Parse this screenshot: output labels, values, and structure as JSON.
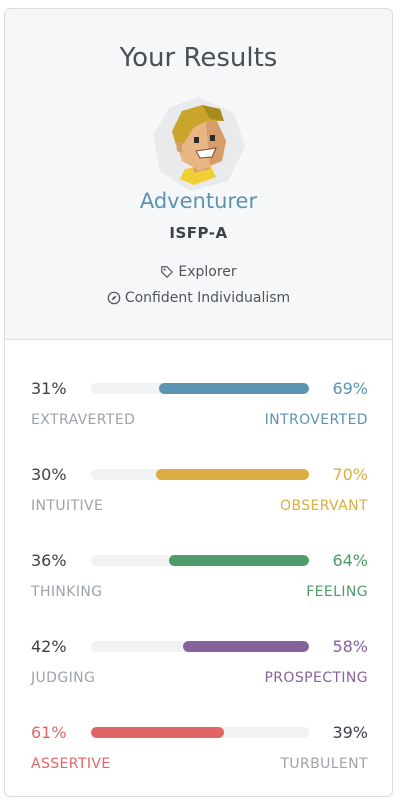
{
  "header": {
    "title": "Your Results",
    "type_name": "Adventurer",
    "type_code": "ISFP-A",
    "role": "Explorer",
    "strategy": "Confident Individualism"
  },
  "traits": [
    {
      "left_pct": "31%",
      "right_pct": "69%",
      "left_label": "EXTRAVERTED",
      "right_label": "INTROVERTED",
      "dominant": "right",
      "dominant_fraction": 0.69,
      "color": "#5b94b0"
    },
    {
      "left_pct": "30%",
      "right_pct": "70%",
      "left_label": "INTUITIVE",
      "right_label": "OBSERVANT",
      "dominant": "right",
      "dominant_fraction": 0.7,
      "color": "#dcae42"
    },
    {
      "left_pct": "36%",
      "right_pct": "64%",
      "left_label": "THINKING",
      "right_label": "FEELING",
      "dominant": "right",
      "dominant_fraction": 0.64,
      "color": "#4f9b6c"
    },
    {
      "left_pct": "42%",
      "right_pct": "58%",
      "left_label": "JUDGING",
      "right_label": "PROSPECTING",
      "dominant": "right",
      "dominant_fraction": 0.58,
      "color": "#86629a"
    },
    {
      "left_pct": "61%",
      "right_pct": "39%",
      "left_label": "ASSERTIVE",
      "right_label": "TURBULENT",
      "dominant": "left",
      "dominant_fraction": 0.61,
      "color": "#e26565"
    }
  ],
  "colors": {
    "muted_text": "#9ea3a8",
    "dark_text": "#3d4148",
    "track": "#f1f2f3"
  },
  "icons": {
    "role": "tag-icon",
    "strategy": "compass-icon"
  }
}
